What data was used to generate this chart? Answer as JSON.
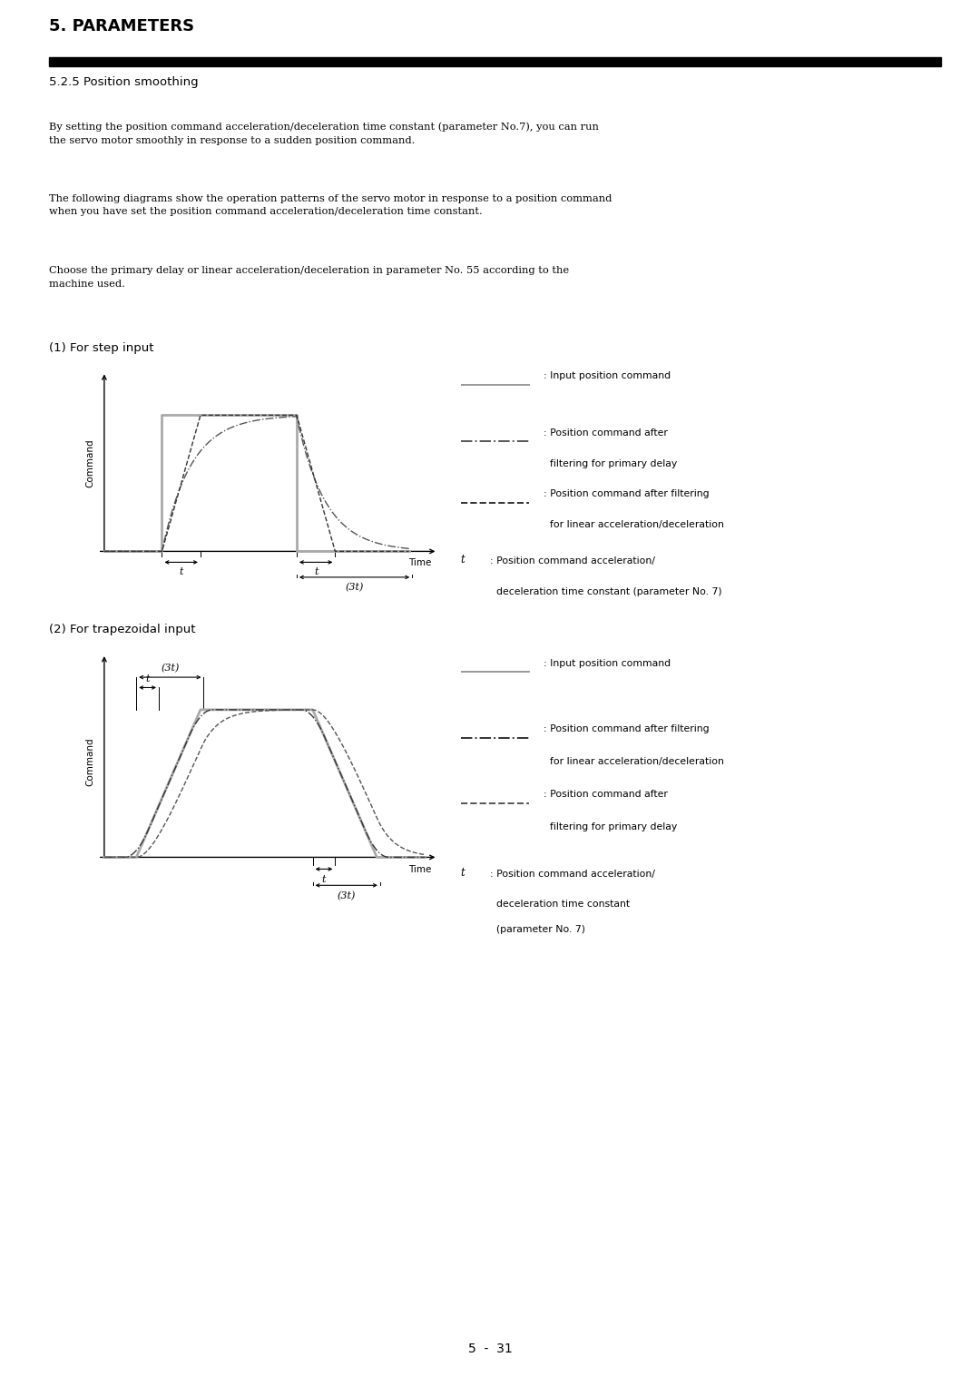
{
  "page_title": "5. PARAMETERS",
  "section_title": "5.2.5 Position smoothing",
  "body_text_lines": [
    "By setting the position command acceleration/deceleration time constant (parameter No.7), you can run",
    "the servo motor smoothly in response to a sudden position command.",
    "The following diagrams show the operation patterns of the servo motor in response to a position command",
    "when you have set the position command acceleration/deceleration time constant.",
    "Choose the primary delay or linear acceleration/deceleration in parameter No. 55 according to the",
    "machine used."
  ],
  "diagram1_title": "(1) For step input",
  "diagram2_title": "(2) For trapezoidal input",
  "legend1": [
    {
      "label1": ": Input position command",
      "label2": "",
      "style": "solid",
      "color": "#999999"
    },
    {
      "label1": ": Position command after",
      "label2": "  filtering for primary delay",
      "style": "dashdot",
      "color": "#555555"
    },
    {
      "label1": ": Position command after filtering",
      "label2": "  for linear acceleration/deceleration",
      "style": "dashed",
      "color": "#333333"
    },
    {
      "label1": ": Position command acceleration/",
      "label2": "  deceleration time constant (parameter No. 7)",
      "style": "none",
      "color": "#000000",
      "t_label": "t"
    }
  ],
  "legend2": [
    {
      "label1": ": Input position command",
      "label2": "",
      "style": "solid",
      "color": "#999999"
    },
    {
      "label1": ": Position command after filtering",
      "label2": "  for linear acceleration/deceleration",
      "style": "dashdot",
      "color": "#333333"
    },
    {
      "label1": ": Position command after",
      "label2": "  filtering for primary delay",
      "style": "dashed",
      "color": "#555555"
    },
    {
      "label1": ": Position command acceleration/",
      "label2": "  deceleration time constant",
      "label3": "  (parameter No. 7)",
      "style": "none",
      "color": "#000000",
      "t_label": "t"
    }
  ],
  "footer": "5  -  31",
  "bg_color": "#ffffff"
}
